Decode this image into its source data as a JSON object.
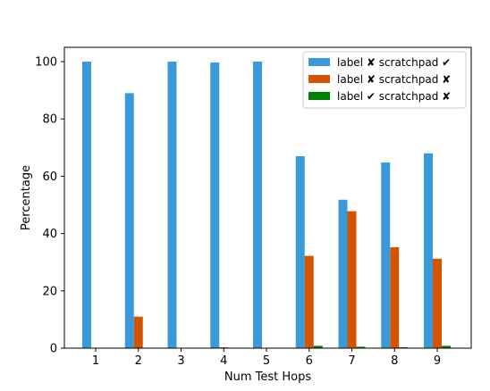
{
  "chart_data": {
    "type": "bar",
    "title": "",
    "xlabel": "Num Test Hops",
    "ylabel": "Percentage",
    "categories": [
      "1",
      "2",
      "3",
      "4",
      "5",
      "6",
      "7",
      "8",
      "9"
    ],
    "ylim": [
      0,
      105
    ],
    "yticks": [
      "0",
      "20",
      "40",
      "60",
      "80",
      "100"
    ],
    "grid": false,
    "legend_position": "top-right",
    "series": [
      {
        "name": "label ✘ scratchpad ✔",
        "color": "#3a9ad9",
        "values": [
          100,
          89,
          100,
          99.7,
          100,
          67,
          51.8,
          64.8,
          68
        ]
      },
      {
        "name": "label ✘ scratchpad ✘",
        "color": "#d35400",
        "values": [
          0,
          11,
          0,
          0.3,
          0,
          32.2,
          47.8,
          35.2,
          31.2
        ]
      },
      {
        "name": "label ✔ scratchpad ✘",
        "color": "#008000",
        "values": [
          0,
          0,
          0,
          0,
          0,
          0.8,
          0.5,
          0.3,
          0.8
        ]
      }
    ]
  }
}
